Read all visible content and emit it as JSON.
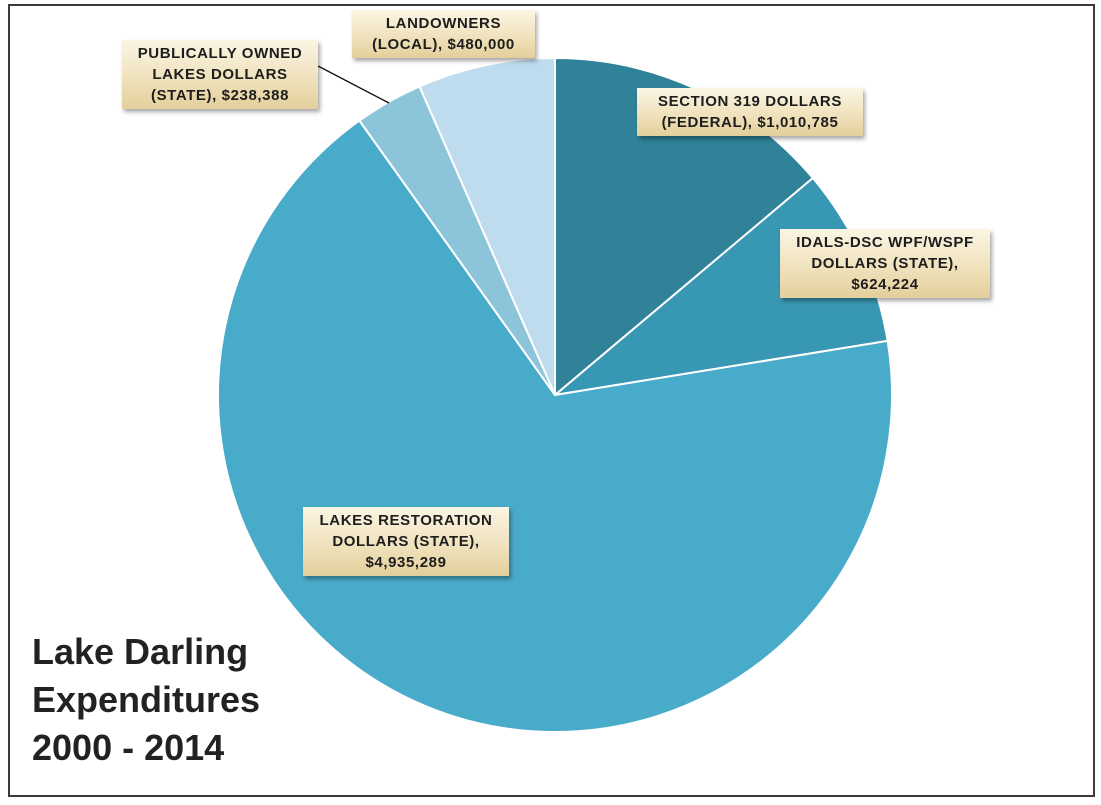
{
  "chart_data": {
    "type": "pie",
    "title_lines": [
      "Lake Darling",
      "Expenditures",
      "2000 - 2014"
    ],
    "slices": [
      {
        "name": "SECTION 319 DOLLARS (FEDERAL)",
        "value": 1010785,
        "color": "#2f8298",
        "label_lines": [
          "SECTION 319 DOLLARS",
          "(FEDERAL), $1,010,785"
        ]
      },
      {
        "name": "IDALS-DSC WPF/WSPF DOLLARS (STATE)",
        "value": 624224,
        "color": "#3897b3",
        "label_lines": [
          "IDALS-DSC WPF/WSPF",
          "DOLLARS (STATE),",
          "$624,224"
        ]
      },
      {
        "name": "LAKES RESTORATION DOLLARS (STATE)",
        "value": 4935289,
        "color": "#49abca",
        "label_lines": [
          "LAKES RESTORATION",
          "DOLLARS (STATE),",
          "$4,935,289"
        ]
      },
      {
        "name": "PUBLICALLY OWNED LAKES DOLLARS (STATE)",
        "value": 238388,
        "color": "#8cc4d9",
        "label_lines": [
          "PUBLICALLY OWNED",
          "LAKES DOLLARS",
          "(STATE), $238,388"
        ]
      },
      {
        "name": "LANDOWNERS (LOCAL)",
        "value": 480000,
        "color": "#bedced",
        "label_lines": [
          "LANDOWNERS",
          "(LOCAL), $480,000"
        ]
      }
    ]
  }
}
